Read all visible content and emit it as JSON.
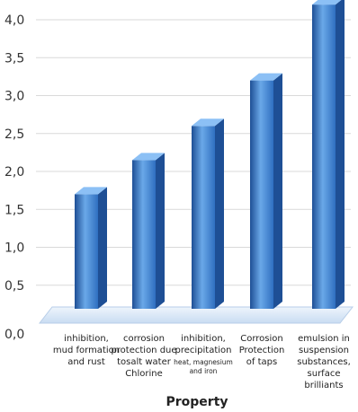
{
  "chart_data": {
    "type": "bar",
    "title": "",
    "xlabel": "Property",
    "ylabel": "",
    "ylim": [
      0,
      4.3
    ],
    "yticks": [
      "0,0",
      "0,5",
      "1,0",
      "1,5",
      "2,0",
      "2,5",
      "3,0",
      "3,5",
      "4,0"
    ],
    "grid": true,
    "legend": "none",
    "categories": [
      "inhibition, mud formation and rust",
      "corrosion protection due tosalt water Chlorine",
      "inhibition, precipitation heat, magnesium and iron",
      "Corrosion Protection of taps",
      "emulsion in suspension substances, surface brilliants"
    ],
    "category_lines": [
      [
        {
          "t": "inhibition,"
        },
        {
          "t": "mud formation"
        },
        {
          "t": "and rust"
        }
      ],
      [
        {
          "t": "corrosion"
        },
        {
          "t": "protection due"
        },
        {
          "t": "tosalt water"
        },
        {
          "t": "Chlorine"
        }
      ],
      [
        {
          "t": "inhibition,"
        },
        {
          "t": "precipitation"
        },
        {
          "t": "heat, magnesium",
          "small": true
        },
        {
          "t": "and iron",
          "small": true
        }
      ],
      [
        {
          "t": "Corrosion"
        },
        {
          "t": "Protection"
        },
        {
          "t": "of taps"
        }
      ],
      [
        {
          "t": "emulsion in"
        },
        {
          "t": "suspension"
        },
        {
          "t": "substances,"
        },
        {
          "t": "surface"
        },
        {
          "t": "brilliants"
        }
      ]
    ],
    "values": [
      1.7,
      2.15,
      2.6,
      3.2,
      4.2
    ],
    "colors": {
      "bar_front": "#2f6fc0",
      "bar_light": "#6aa8e8",
      "bar_dark": "#1e4f95",
      "bar_top": "#8cc0f5",
      "floor": "#d6e6f7"
    }
  }
}
